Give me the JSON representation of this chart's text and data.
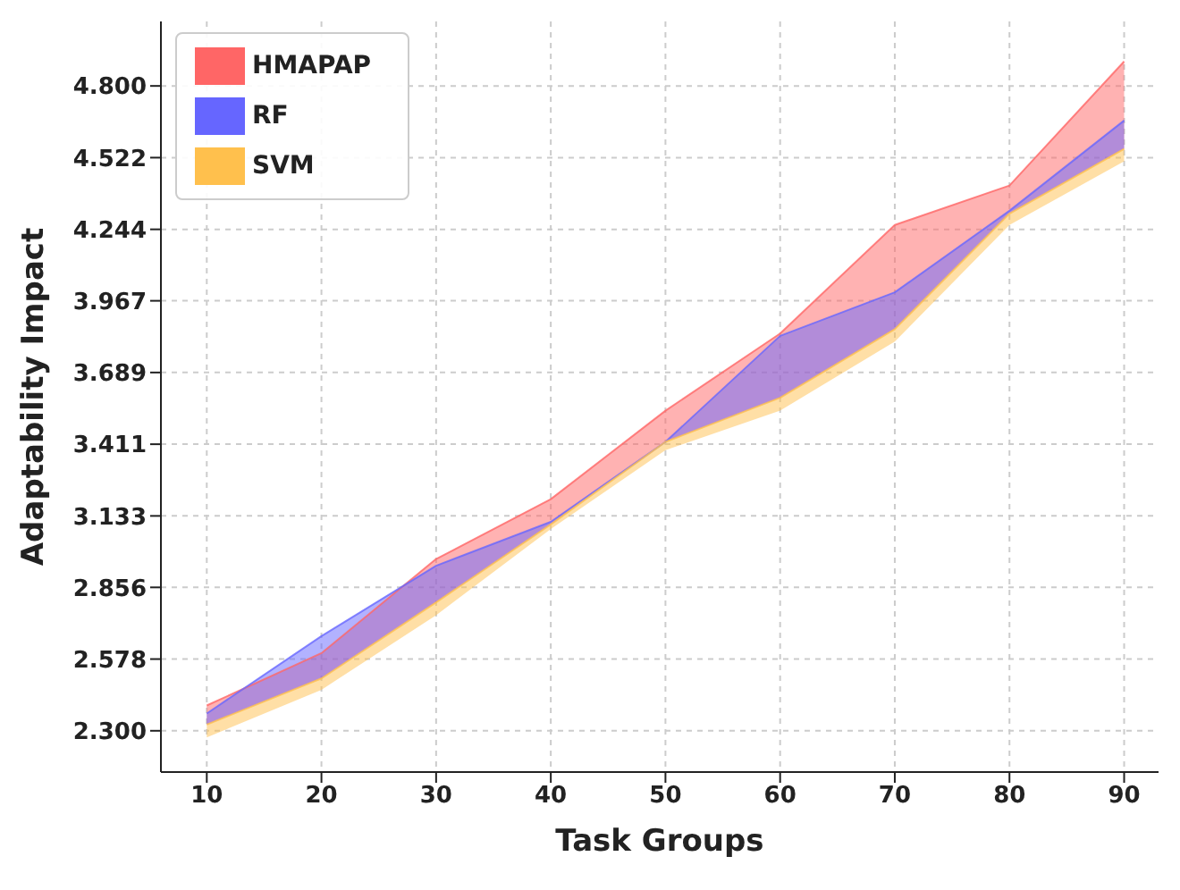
{
  "chart_data": {
    "type": "line",
    "marker": "none",
    "xlabel": "Task Groups",
    "ylabel": "Adaptability Impact",
    "x": [
      10,
      20,
      30,
      40,
      50,
      60,
      70,
      80,
      90
    ],
    "series": [
      {
        "name": "HMAPAP",
        "color": "#ff6666",
        "values": [
          2.398,
          2.601,
          2.966,
          3.198,
          3.541,
          3.84,
          4.261,
          4.414,
          4.895
        ],
        "upper": [
          2.398,
          2.601,
          2.966,
          3.198,
          3.541,
          3.84,
          4.261,
          4.414,
          4.895
        ],
        "lower": [
          2.324,
          2.503,
          2.798,
          3.1,
          3.42,
          3.591,
          3.857,
          4.305,
          4.556
        ]
      },
      {
        "name": "RF",
        "color": "#6666ff",
        "values": [
          2.367,
          2.667,
          2.94,
          3.11,
          3.42,
          3.831,
          4.0,
          4.316,
          4.666
        ],
        "upper": [
          2.367,
          2.667,
          2.94,
          3.11,
          3.42,
          3.831,
          4.0,
          4.316,
          4.666
        ],
        "lower": [
          2.324,
          2.503,
          2.798,
          3.1,
          3.42,
          3.591,
          3.857,
          4.305,
          4.556
        ]
      },
      {
        "name": "SVM",
        "color": "#ffc04d",
        "values": [
          2.324,
          2.503,
          2.798,
          3.1,
          3.42,
          3.591,
          3.857,
          4.305,
          4.556
        ],
        "upper": [
          2.324,
          2.503,
          2.798,
          3.1,
          3.42,
          3.591,
          3.857,
          4.305,
          4.556
        ],
        "lower": [
          2.274,
          2.459,
          2.748,
          3.082,
          3.388,
          3.541,
          3.809,
          4.261,
          4.508
        ]
      }
    ],
    "xlim": [
      6,
      93
    ],
    "xticks": [
      10,
      20,
      30,
      40,
      50,
      60,
      70,
      80,
      90
    ],
    "ylim": [
      2.14,
      5.05
    ],
    "yticks": [
      {
        "value": 2.3,
        "label": "2.300"
      },
      2.578,
      2.856,
      3.133,
      3.411,
      3.689,
      3.967,
      4.244,
      4.522,
      {
        "value": 4.8,
        "label": "4.800"
      }
    ],
    "grid": true,
    "legend": "top left"
  }
}
